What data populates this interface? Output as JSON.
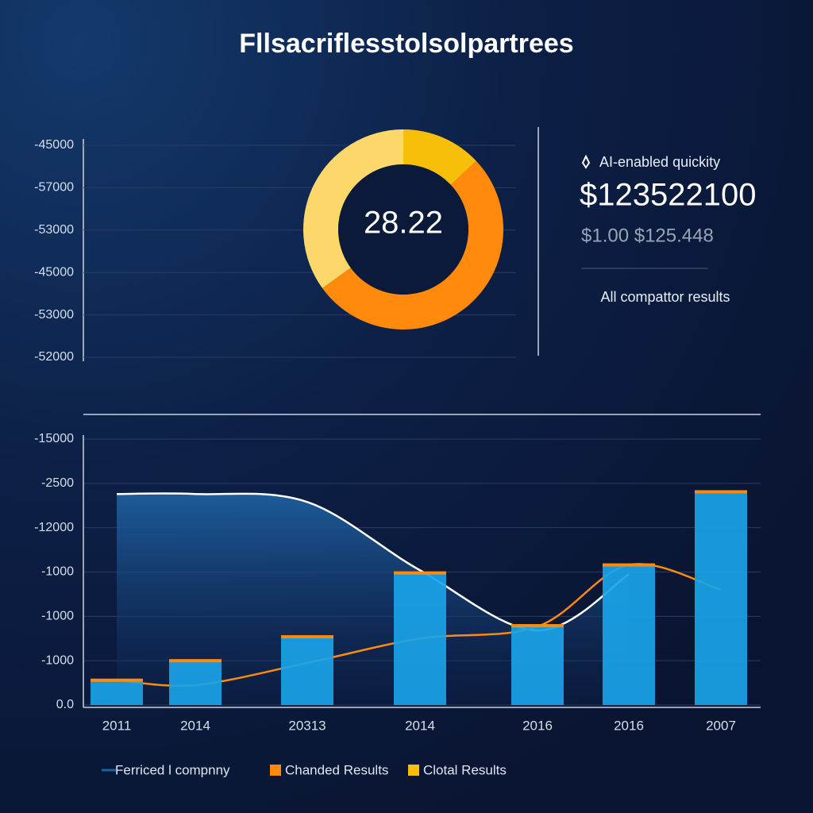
{
  "title": "Fllsacriflesstolsolpartrees",
  "panel": {
    "label": "AI-enabled quickity",
    "value": "$123522100",
    "sub": "$1.00 $125.448",
    "note": "All compattor results"
  },
  "chart_data": [
    {
      "type": "grid",
      "ylim": [
        0,
        5
      ],
      "yticks": [
        {
          "value": 5,
          "label": "-45000"
        },
        {
          "value": 4,
          "label": "-57000"
        },
        {
          "value": 3,
          "label": "-53000"
        },
        {
          "value": 2,
          "label": "-45000"
        },
        {
          "value": 1,
          "label": "-53000"
        },
        {
          "value": 0,
          "label": "-52000"
        }
      ],
      "grid": true
    },
    {
      "type": "pie",
      "center_label": "28.22",
      "values": [
        13,
        52,
        35
      ],
      "colors": [
        "#f7be0a",
        "#ff8a0c",
        "#fcd86a"
      ]
    },
    {
      "type": "bar",
      "categories": [
        "2011",
        "2014",
        "20313",
        "2014",
        "2016",
        "2016",
        "2007"
      ],
      "ylim": [
        0,
        6
      ],
      "yticks": [
        {
          "value": 0,
          "label": "0.0"
        },
        {
          "value": 1,
          "label": "-1000"
        },
        {
          "value": 2,
          "label": "-1000"
        },
        {
          "value": 3,
          "label": "-1000"
        },
        {
          "value": 4,
          "label": "-12000"
        },
        {
          "value": 5,
          "label": "-2500"
        },
        {
          "value": 6,
          "label": "-15000"
        }
      ],
      "grid": true,
      "series": [
        {
          "name": "Ferriced l compnny",
          "kind": "area",
          "color": "#ffffff",
          "fill": "#1e5f9e",
          "values": [
            4.76,
            4.76,
            4.58,
            3.04,
            1.68,
            2.95,
            null
          ]
        },
        {
          "name": "Chanded Results",
          "kind": "line",
          "color": "#ff8a0c",
          "values": [
            0.56,
            0.45,
            0.95,
            1.5,
            1.77,
            3.16,
            2.6
          ]
        },
        {
          "name": "Clotal Results",
          "kind": "bar",
          "color": "#1aa3e8",
          "cap_color": "#ff8a0c",
          "legend_color": "#f7be0a",
          "values": [
            0.56,
            1.0,
            1.54,
            2.98,
            1.79,
            3.16,
            4.81
          ]
        }
      ]
    }
  ]
}
